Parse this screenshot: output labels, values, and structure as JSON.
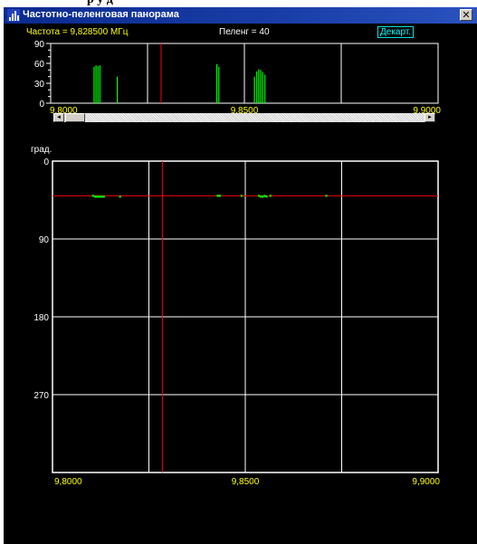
{
  "window": {
    "title": "Частотно-пеленговая панорама",
    "close_glyph": "✕",
    "icon": "panorama-app-icon"
  },
  "header": {
    "frequency_text": "Частота  = 9,828500 МГц",
    "bearing_text": "Пеленг  = 40",
    "mode_button": "Декарт."
  },
  "spectrum": {
    "y_ticks": [
      "90",
      "60",
      "30",
      "0"
    ],
    "x_ticks": [
      "9,8000",
      "9,8500",
      "9,9000"
    ],
    "x_range": [
      9.8,
      9.9
    ],
    "y_range": [
      0,
      90
    ],
    "cursor_freq": 9.8285,
    "bars": [
      [
        9.8112,
        55
      ],
      [
        9.8117,
        57
      ],
      [
        9.8122,
        56
      ],
      [
        9.8127,
        57
      ],
      [
        9.8172,
        40
      ],
      [
        9.8429,
        59
      ],
      [
        9.8434,
        55
      ],
      [
        9.8526,
        40
      ],
      [
        9.8532,
        48
      ],
      [
        9.8537,
        51
      ],
      [
        9.8542,
        50
      ],
      [
        9.8547,
        47
      ],
      [
        9.8553,
        43
      ]
    ]
  },
  "scrollbar": {
    "left_glyph": "◄",
    "right_glyph": "►"
  },
  "bearing_plot": {
    "y_unit": "град.",
    "y_ticks": [
      "0",
      "90",
      "180",
      "270"
    ],
    "y_range": [
      0,
      360
    ],
    "x_ticks": [
      "9,8000",
      "9,8500",
      "9,9000"
    ],
    "x_range": [
      9.8,
      9.9
    ],
    "cursor_freq": 9.8285,
    "cursor_bearing": 40,
    "points": [
      [
        9.8105,
        40
      ],
      [
        9.811,
        41
      ],
      [
        9.8115,
        41
      ],
      [
        9.8118,
        41
      ],
      [
        9.8121,
        41
      ],
      [
        9.8124,
        41
      ],
      [
        9.8127,
        41
      ],
      [
        9.813,
        41
      ],
      [
        9.8133,
        41
      ],
      [
        9.8175,
        41
      ],
      [
        9.8428,
        40
      ],
      [
        9.8431,
        40
      ],
      [
        9.8434,
        40
      ],
      [
        9.849,
        40
      ],
      [
        9.8535,
        40
      ],
      [
        9.854,
        41
      ],
      [
        9.8545,
        41
      ],
      [
        9.855,
        40
      ],
      [
        9.8555,
        41
      ],
      [
        9.8565,
        40
      ],
      [
        9.871,
        40
      ]
    ]
  },
  "colors": {
    "background": "#000000",
    "grid": "#ffffff",
    "cursor": "#ff0000",
    "signal": "#00ff00",
    "label": "#ffff00",
    "mode_button": "#00ffff"
  }
}
